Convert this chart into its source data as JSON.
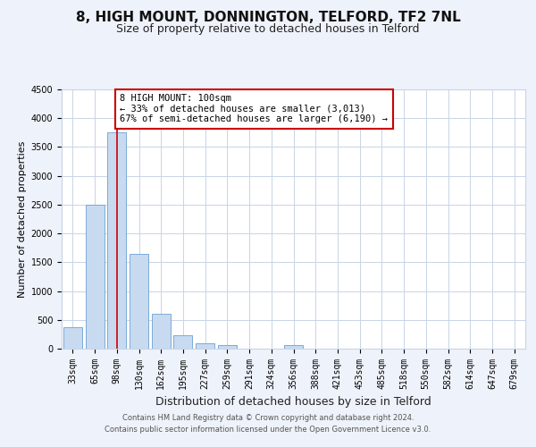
{
  "title": "8, HIGH MOUNT, DONNINGTON, TELFORD, TF2 7NL",
  "subtitle": "Size of property relative to detached houses in Telford",
  "xlabel": "Distribution of detached houses by size in Telford",
  "ylabel": "Number of detached properties",
  "categories": [
    "33sqm",
    "65sqm",
    "98sqm",
    "130sqm",
    "162sqm",
    "195sqm",
    "227sqm",
    "259sqm",
    "291sqm",
    "324sqm",
    "356sqm",
    "388sqm",
    "421sqm",
    "453sqm",
    "485sqm",
    "518sqm",
    "550sqm",
    "582sqm",
    "614sqm",
    "647sqm",
    "679sqm"
  ],
  "values": [
    380,
    2500,
    3750,
    1650,
    600,
    240,
    100,
    55,
    0,
    0,
    55,
    0,
    0,
    0,
    0,
    0,
    0,
    0,
    0,
    0,
    0
  ],
  "bar_color": "#c8daf0",
  "bar_edge_color": "#7aaad8",
  "vline_x_index": 2,
  "vline_color": "#cc0000",
  "annotation_text": "8 HIGH MOUNT: 100sqm\n← 33% of detached houses are smaller (3,013)\n67% of semi-detached houses are larger (6,190) →",
  "annotation_box_color": "#ffffff",
  "annotation_box_edge_color": "#cc0000",
  "ylim": [
    0,
    4500
  ],
  "yticks": [
    0,
    500,
    1000,
    1500,
    2000,
    2500,
    3000,
    3500,
    4000,
    4500
  ],
  "background_color": "#eef2fa",
  "plot_bg_color": "#ffffff",
  "grid_color": "#c8d4e8",
  "title_fontsize": 11,
  "subtitle_fontsize": 9,
  "xlabel_fontsize": 9,
  "ylabel_fontsize": 8,
  "tick_fontsize": 7,
  "annot_fontsize": 7.5,
  "footer_line1": "Contains HM Land Registry data © Crown copyright and database right 2024.",
  "footer_line2": "Contains public sector information licensed under the Open Government Licence v3.0."
}
